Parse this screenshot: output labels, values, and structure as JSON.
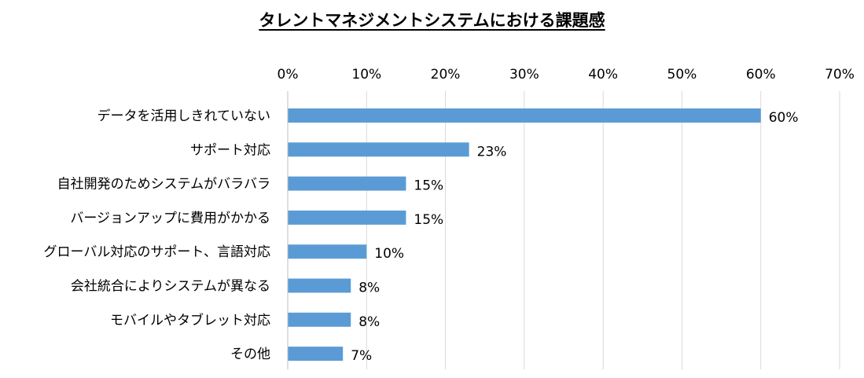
{
  "chart_data": {
    "type": "bar",
    "orientation": "horizontal",
    "title": "タレントマネジメントシステムにおける課題感",
    "categories": [
      "データを活用しきれていない",
      "サポート対応",
      "自社開発のためシステムがバラバラ",
      "バージョンアップに費用がかかる",
      "グローバル対応のサポート、言語対応",
      "会社統合によりシステムが異なる",
      "モバイルやタブレット対応",
      "その他"
    ],
    "values": [
      60,
      23,
      15,
      15,
      10,
      8,
      8,
      7
    ],
    "data_labels": [
      "60%",
      "23%",
      "15%",
      "15%",
      "10%",
      "8%",
      "8%",
      "7%"
    ],
    "xlim": [
      0,
      70
    ],
    "x_ticks": [
      "0%",
      "10%",
      "20%",
      "30%",
      "40%",
      "50%",
      "60%",
      "70%"
    ],
    "x_axis_position": "top",
    "grid": true,
    "legend": "none",
    "bar_color": "#5B9BD5",
    "grid_color": "#D9D9D9",
    "xlabel": "",
    "ylabel": ""
  }
}
